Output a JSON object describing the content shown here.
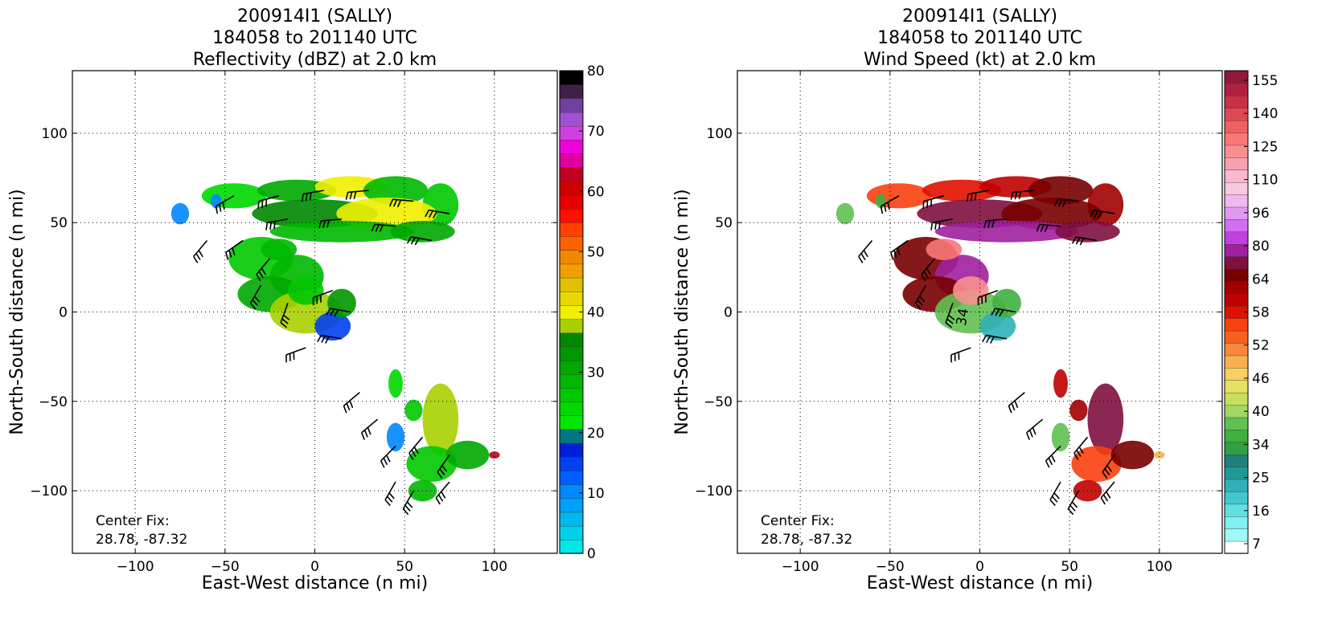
{
  "chart_data": [
    {
      "type": "heatmap",
      "title_lines": [
        "200914I1 (SALLY)",
        "184058 to 201140 UTC",
        "Reflectivity (dBZ) at 2.0 km"
      ],
      "xlabel": "East-West distance (n mi)",
      "ylabel": "North-South distance (n mi)",
      "xlim": [
        -135,
        135
      ],
      "ylim": [
        -135,
        135
      ],
      "xticks": [
        -100,
        -50,
        0,
        50,
        100
      ],
      "yticks": [
        -100,
        -50,
        0,
        50,
        100
      ],
      "grid": true,
      "annotation_lines": [
        "Center Fix:",
        "28.78, -87.32"
      ],
      "colorbar": {
        "label_ticks": [
          0,
          10,
          20,
          30,
          40,
          50,
          60,
          70,
          80
        ],
        "range": [
          0,
          80
        ],
        "colors": [
          "#00e8e8",
          "#00d0e8",
          "#00b8f0",
          "#00a0f8",
          "#0088ff",
          "#0060ff",
          "#0040f0",
          "#0020d8",
          "#007880",
          "#00e800",
          "#00d800",
          "#00c800",
          "#00b800",
          "#00a800",
          "#009800",
          "#008800",
          "#a8d000",
          "#f0f000",
          "#e8d800",
          "#e0c000",
          "#f0a000",
          "#f08800",
          "#ff6000",
          "#ff4000",
          "#ff1000",
          "#e80000",
          "#d00000",
          "#c00020",
          "#e000a0",
          "#f000e0",
          "#d040e0",
          "#a050d0",
          "#7040a0",
          "#402048",
          "#000000"
        ]
      },
      "wind_barbs": "present"
    },
    {
      "type": "heatmap",
      "title_lines": [
        "200914I1 (SALLY)",
        "184058 to 201140 UTC",
        "Wind Speed (kt) at 2.0 km"
      ],
      "xlabel": "East-West distance (n mi)",
      "ylabel": "North-South distance (n mi)",
      "xlim": [
        -135,
        135
      ],
      "ylim": [
        -135,
        135
      ],
      "xticks": [
        -100,
        -50,
        0,
        50,
        100
      ],
      "yticks": [
        -100,
        -50,
        0,
        50,
        100
      ],
      "grid": true,
      "annotation_lines": [
        "Center Fix:",
        "28.78, -87.32"
      ],
      "contour_label": "34",
      "colorbar": {
        "label_ticks": [
          "7",
          "16",
          "25",
          "34",
          "40",
          "46",
          "52",
          "58",
          "64",
          "80",
          "96",
          "110",
          "125",
          "140",
          "155"
        ],
        "colors": [
          "#ffffff",
          "#a0f8f8",
          "#80f0f0",
          "#60e0e0",
          "#40c8d0",
          "#30b0b8",
          "#209898",
          "#208078",
          "#30a040",
          "#40b040",
          "#60c050",
          "#a0d860",
          "#c8e060",
          "#e8e060",
          "#f8d060",
          "#f8b050",
          "#f88840",
          "#f86020",
          "#f84010",
          "#e01000",
          "#c00000",
          "#a00000",
          "#780000",
          "#801040",
          "#a020a0",
          "#c040e0",
          "#d070f0",
          "#e098f0",
          "#f0b8f0",
          "#f8c8e0",
          "#f8b8d0",
          "#f8a0b0",
          "#f89090",
          "#f87878",
          "#f06060",
          "#e04858",
          "#c83048",
          "#b02040",
          "#901838"
        ]
      },
      "wind_barbs": "present"
    }
  ]
}
